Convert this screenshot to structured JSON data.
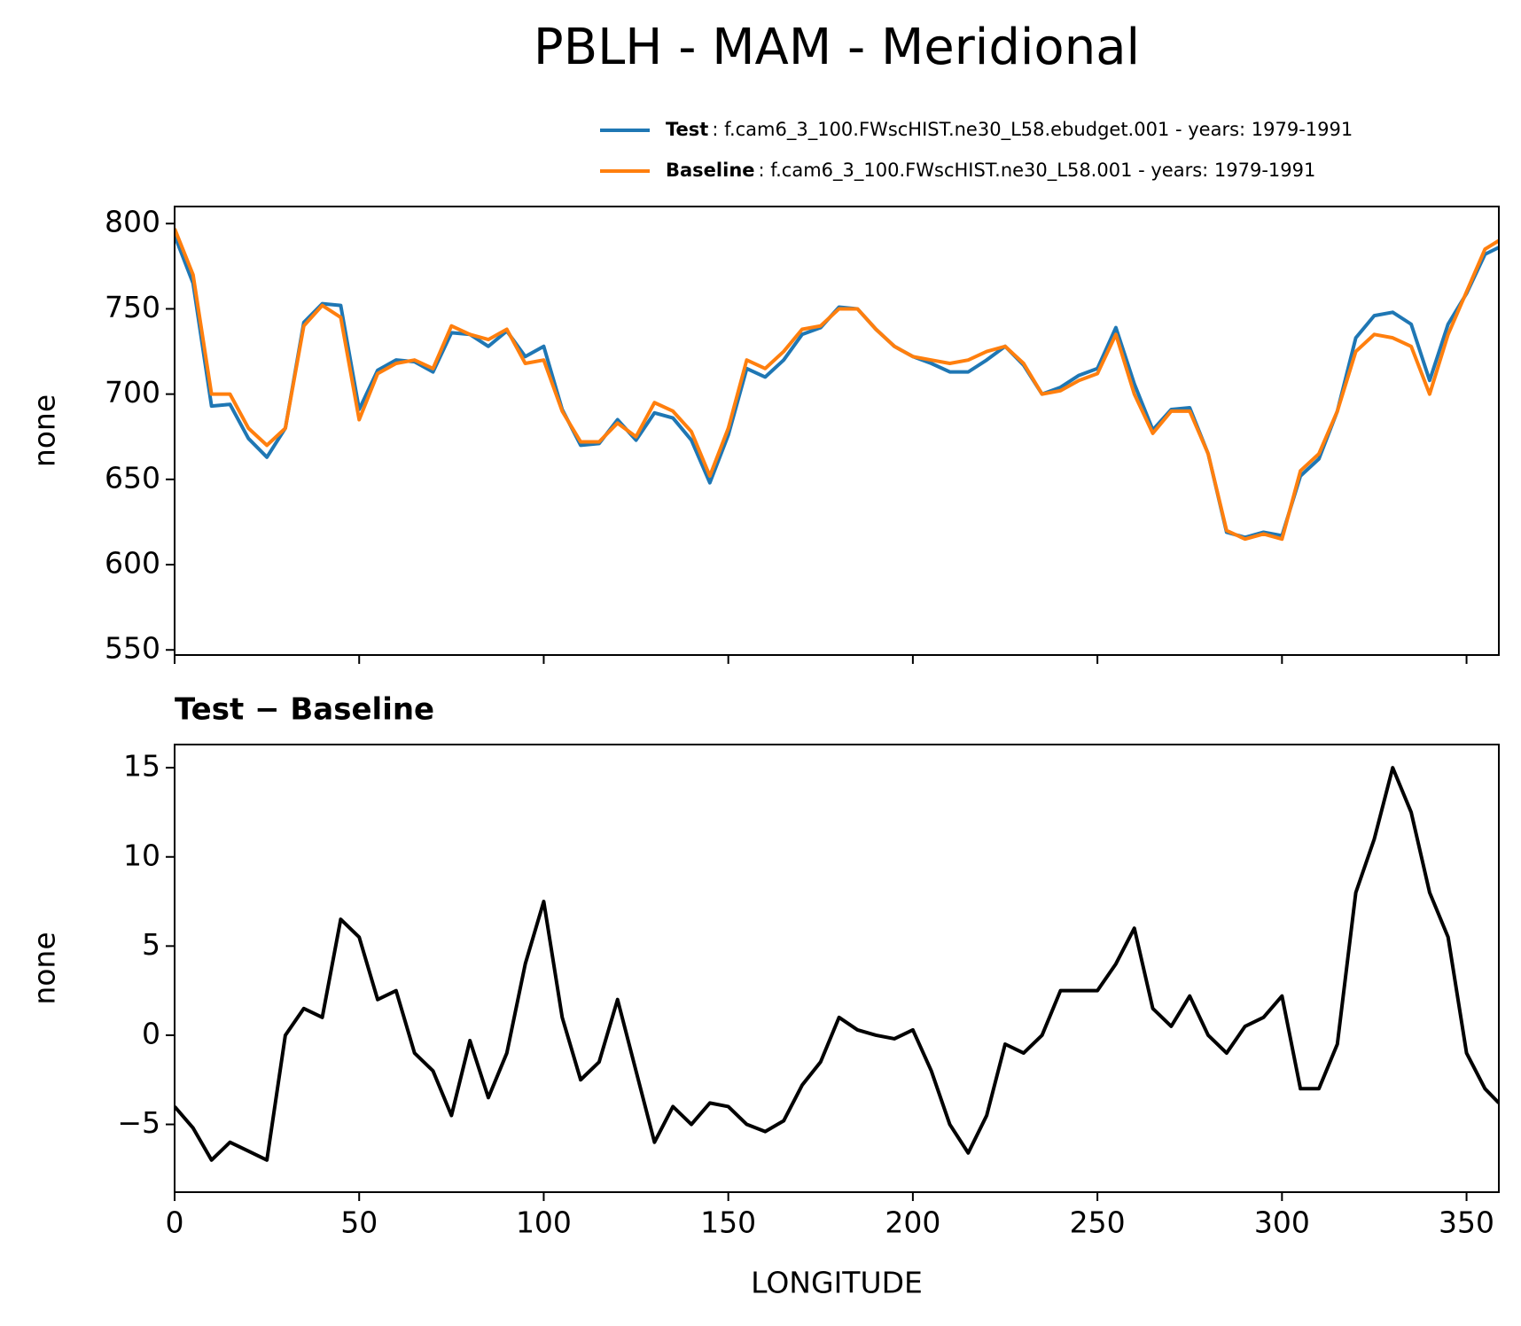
{
  "title": "PBLH - MAM - Meridional",
  "chart_data": [
    {
      "type": "line",
      "ylabel": "none",
      "x": [
        0,
        5,
        10,
        15,
        20,
        25,
        30,
        35,
        40,
        45,
        50,
        55,
        60,
        65,
        70,
        75,
        80,
        85,
        90,
        95,
        100,
        105,
        110,
        115,
        120,
        125,
        130,
        135,
        140,
        145,
        150,
        155,
        160,
        165,
        170,
        175,
        180,
        185,
        190,
        195,
        200,
        205,
        210,
        215,
        220,
        225,
        230,
        235,
        240,
        245,
        250,
        255,
        260,
        265,
        270,
        275,
        280,
        285,
        290,
        295,
        300,
        305,
        310,
        315,
        320,
        325,
        330,
        335,
        340,
        345,
        350,
        355,
        358.75
      ],
      "series": [
        {
          "name": "Test",
          "label": ": f.cam6_3_100.FWscHIST.ne30_L58.ebudget.001 - years: 1979-1991",
          "color": "#1f77b4",
          "values": [
            793,
            765,
            693,
            694,
            674,
            663,
            680,
            742,
            753,
            752,
            691,
            714,
            720,
            719,
            713,
            736,
            735,
            728,
            737,
            722,
            728,
            691,
            670,
            671,
            685,
            673,
            689,
            686,
            673,
            648,
            676,
            715,
            710,
            720,
            735,
            739,
            751,
            750,
            738,
            728,
            722,
            718,
            713,
            713,
            720,
            728,
            717,
            700,
            704,
            711,
            715,
            739,
            706,
            679,
            691,
            692,
            665,
            619,
            616,
            619,
            617,
            652,
            662,
            690,
            733,
            746,
            748,
            741,
            708,
            741,
            759,
            782,
            786
          ]
        },
        {
          "name": "Baseline",
          "label": ": f.cam6_3_100.FWscHIST.ne30_L58.001 - years: 1979-1991",
          "color": "#ff7f0e",
          "values": [
            797,
            770,
            700,
            700,
            680,
            670,
            680,
            740,
            752,
            745,
            685,
            712,
            718,
            720,
            715,
            740,
            735,
            732,
            738,
            718,
            720,
            690,
            672,
            672,
            683,
            675,
            695,
            690,
            678,
            652,
            680,
            720,
            715,
            725,
            738,
            740,
            750,
            750,
            738,
            728,
            722,
            720,
            718,
            720,
            725,
            728,
            718,
            700,
            702,
            708,
            712,
            735,
            700,
            677,
            690,
            690,
            665,
            620,
            615,
            618,
            615,
            655,
            665,
            690,
            725,
            735,
            733,
            728,
            700,
            735,
            760,
            785,
            790
          ]
        }
      ],
      "xlim": [
        0,
        358.75
      ],
      "xticks": [
        0,
        50,
        100,
        150,
        200,
        250,
        300,
        350
      ],
      "ylim": [
        547,
        810
      ],
      "yticks": [
        550,
        600,
        650,
        700,
        750,
        800
      ]
    },
    {
      "type": "line",
      "title": "Test − Baseline",
      "xlabel": "LONGITUDE",
      "ylabel": "none",
      "x": [
        0,
        5,
        10,
        15,
        20,
        25,
        30,
        35,
        40,
        45,
        50,
        55,
        60,
        65,
        70,
        75,
        80,
        85,
        90,
        95,
        100,
        105,
        110,
        115,
        120,
        125,
        130,
        135,
        140,
        145,
        150,
        155,
        160,
        165,
        170,
        175,
        180,
        185,
        190,
        195,
        200,
        205,
        210,
        215,
        220,
        225,
        230,
        235,
        240,
        245,
        250,
        255,
        260,
        265,
        270,
        275,
        280,
        285,
        290,
        295,
        300,
        305,
        310,
        315,
        320,
        325,
        330,
        335,
        340,
        345,
        350,
        355,
        358.75
      ],
      "series": [
        {
          "color": "#000000",
          "values": [
            -4,
            -5.2,
            -7,
            -6,
            -6.5,
            -7,
            0,
            1.5,
            1,
            6.5,
            5.5,
            2,
            2.5,
            -1,
            -2,
            -4.5,
            -0.3,
            -3.5,
            -1,
            4,
            7.5,
            1,
            -2.5,
            -1.5,
            2,
            -2,
            -6,
            -4,
            -5,
            -3.8,
            -4,
            -5,
            -5.4,
            -4.8,
            -2.8,
            -1.5,
            1,
            0.3,
            0,
            -0.2,
            0.3,
            -2,
            -5,
            -6.6,
            -4.5,
            -0.5,
            -1,
            0,
            2.5,
            2.5,
            2.5,
            4,
            6,
            1.5,
            0.5,
            2.2,
            0,
            -1,
            0.5,
            1,
            2.2,
            -3,
            -3,
            -0.5,
            8,
            11,
            15,
            12.5,
            8,
            5.5,
            -1,
            -3,
            -3.8
          ]
        }
      ],
      "xlim": [
        0,
        358.75
      ],
      "xticks": [
        0,
        50,
        100,
        150,
        200,
        250,
        300,
        350
      ],
      "ylim": [
        -8.8,
        16.3
      ],
      "yticks": [
        {
          "value": -5,
          "label": "−5"
        },
        0,
        5,
        10,
        15
      ]
    }
  ]
}
